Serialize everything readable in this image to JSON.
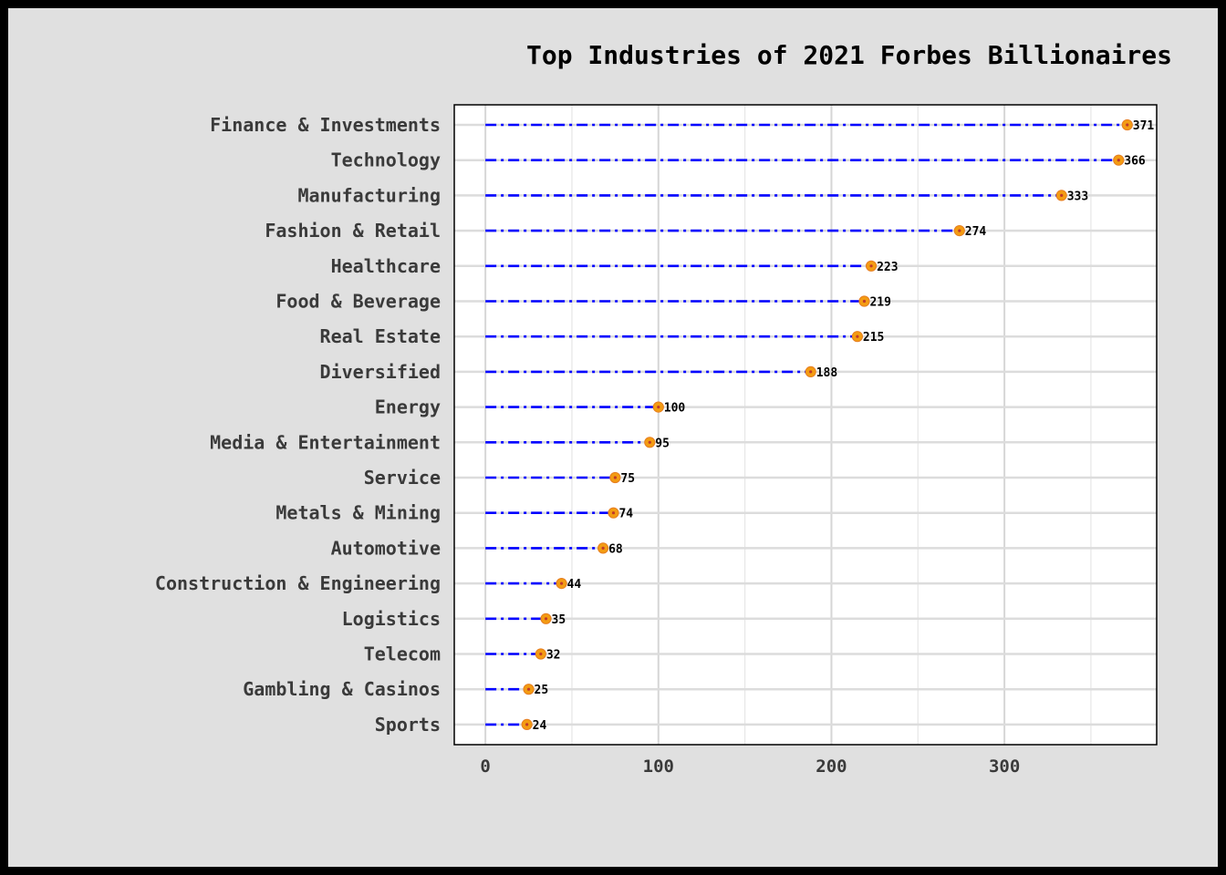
{
  "chart_data": {
    "type": "lollipop",
    "title": "Top Industries of 2021 Forbes Billionaires",
    "xlabel": "",
    "ylabel": "",
    "xlim": [
      -18,
      388
    ],
    "xticks": [
      0,
      100,
      200,
      300
    ],
    "grid": true,
    "categories": [
      "Finance & Investments",
      "Technology",
      "Manufacturing",
      "Fashion & Retail",
      "Healthcare",
      "Food & Beverage",
      "Real Estate",
      "Diversified",
      "Energy",
      "Media & Entertainment",
      "Service",
      "Metals & Mining",
      "Automotive",
      "Construction & Engineering",
      "Logistics",
      "Telecom",
      "Gambling & Casinos",
      "Sports"
    ],
    "values": [
      371,
      366,
      333,
      274,
      223,
      219,
      215,
      188,
      100,
      95,
      75,
      74,
      68,
      44,
      35,
      32,
      25,
      24
    ],
    "colors": {
      "stem": "#0000ff",
      "marker_fill": "#f39c12",
      "marker_center": "#c0392b",
      "background": "#e0e0e0",
      "plot_background": "#ffffff",
      "grid": "#dcdcdc"
    }
  }
}
